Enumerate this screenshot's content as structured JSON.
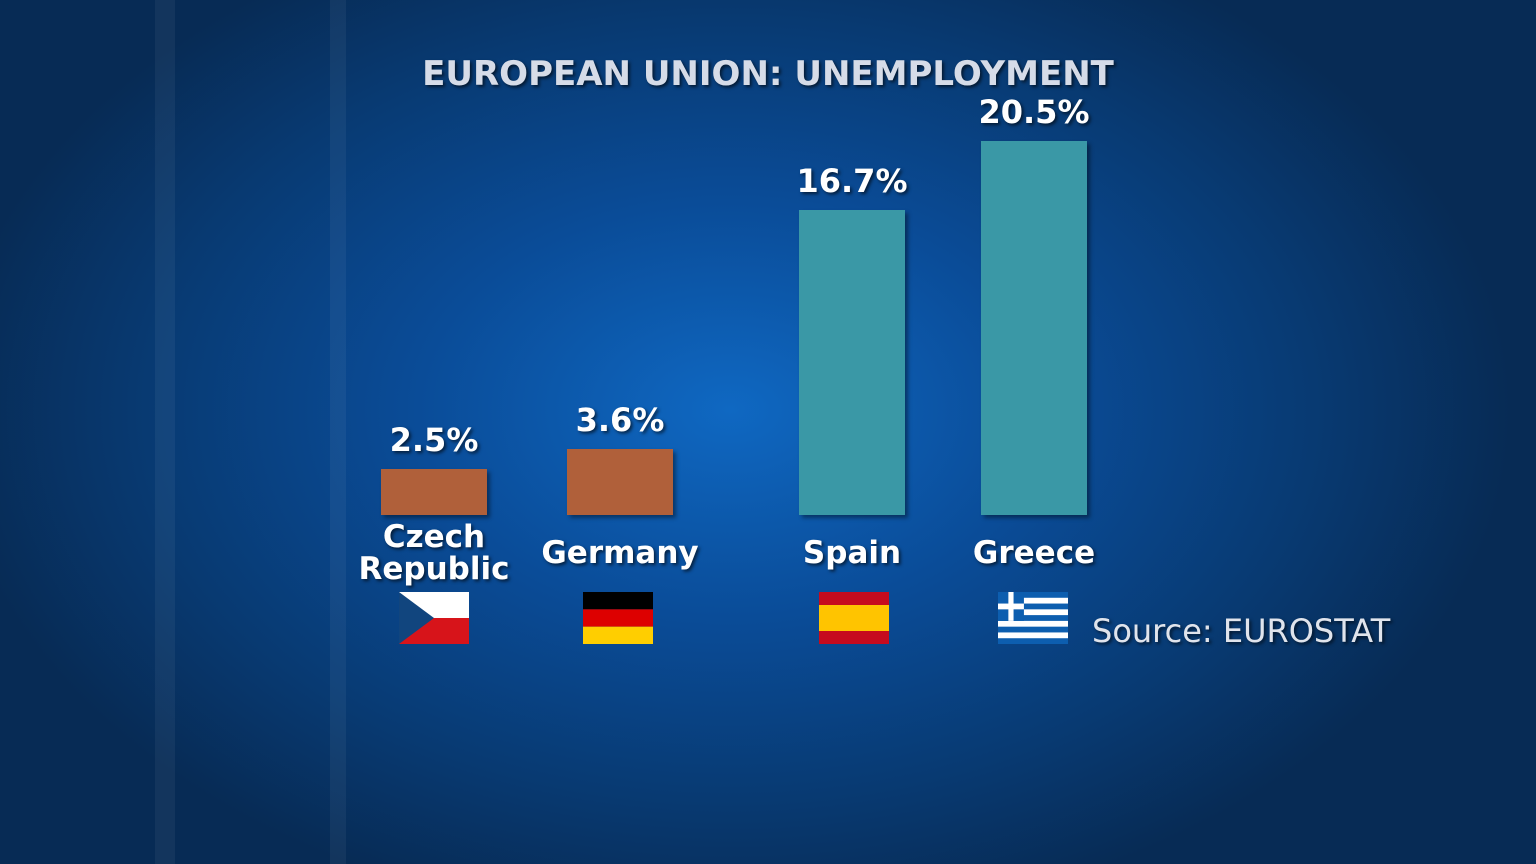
{
  "chart_data": {
    "type": "bar",
    "title": "EUROPEAN UNION: UNEMPLOYMENT",
    "categories": [
      "Czech Republic",
      "Germany",
      "Spain",
      "Greece"
    ],
    "values": [
      2.5,
      3.6,
      16.7,
      20.5
    ],
    "value_labels": [
      "2.5%",
      "3.6%",
      "16.7%",
      "20.5%"
    ],
    "colors": [
      "#b0603a",
      "#b0603a",
      "#3a98a6",
      "#3a98a6"
    ],
    "source": "Source: EUROSTAT"
  }
}
